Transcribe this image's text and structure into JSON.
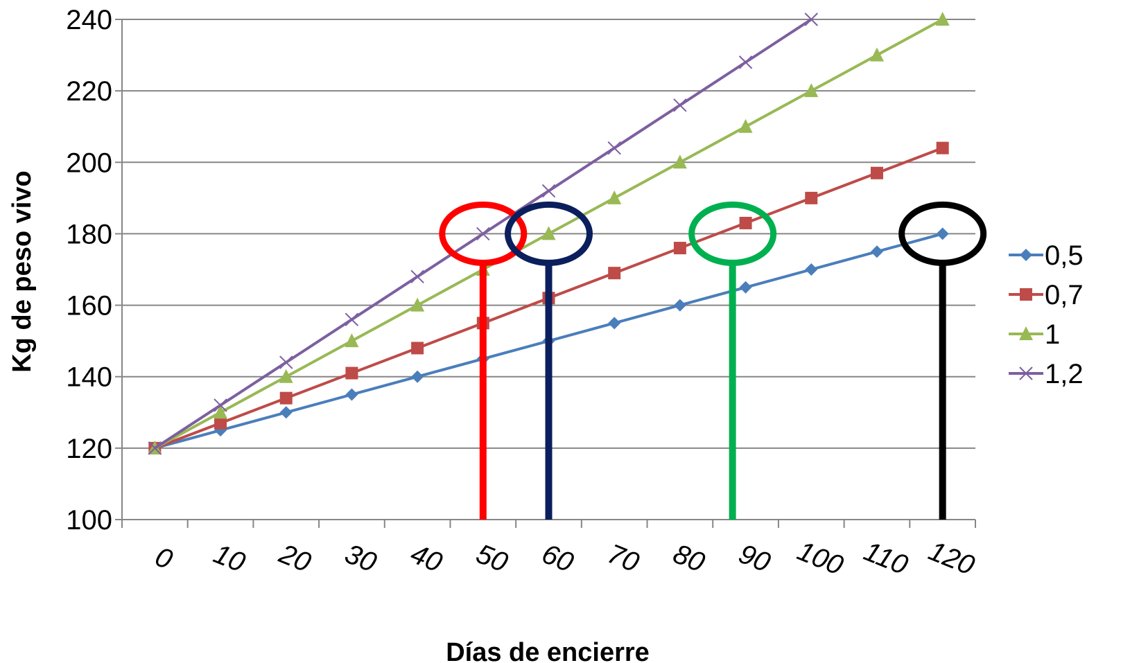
{
  "chart_data": {
    "type": "line",
    "xlabel": "Días de encierre",
    "ylabel": "Kg de peso vivo",
    "x_tick_labels": [
      "0",
      "10",
      "20",
      "30",
      "40",
      "50",
      "60",
      "70",
      "80",
      "90",
      "100",
      "110",
      "120"
    ],
    "x": [
      0,
      10,
      20,
      30,
      40,
      50,
      60,
      70,
      80,
      90,
      100,
      110,
      120
    ],
    "ylim": [
      100,
      240
    ],
    "y_ticks": [
      100,
      120,
      140,
      160,
      180,
      200,
      220,
      240
    ],
    "grid": "horizontal",
    "legend_position": "right",
    "series": [
      {
        "name": "0,5",
        "color": "#4a7ebb",
        "marker": "diamond",
        "values": [
          120,
          125,
          130,
          135,
          140,
          145,
          150,
          155,
          160,
          165,
          170,
          175,
          180
        ]
      },
      {
        "name": "0,7",
        "color": "#be4b48",
        "marker": "square",
        "values": [
          120,
          127,
          134,
          141,
          148,
          155,
          162,
          169,
          176,
          183,
          190,
          197,
          204
        ]
      },
      {
        "name": "1",
        "color": "#98b954",
        "marker": "triangle",
        "values": [
          120,
          130,
          140,
          150,
          160,
          170,
          180,
          190,
          200,
          210,
          220,
          230,
          240
        ]
      },
      {
        "name": "1,2",
        "color": "#7d5fa0",
        "marker": "x",
        "values": [
          120,
          132,
          144,
          156,
          168,
          180,
          192,
          204,
          216,
          228,
          240,
          null,
          null
        ]
      }
    ],
    "annotations": [
      {
        "kind": "circle-with-drop-line",
        "color": "#ff0000",
        "x": 50,
        "y": 180
      },
      {
        "kind": "circle-with-drop-line",
        "color": "#0a1f5c",
        "x": 60,
        "y": 180
      },
      {
        "kind": "circle-with-drop-line",
        "color": "#00b050",
        "x": 88,
        "y": 180
      },
      {
        "kind": "circle-with-drop-line",
        "color": "#000000",
        "x": 120,
        "y": 180
      }
    ]
  }
}
